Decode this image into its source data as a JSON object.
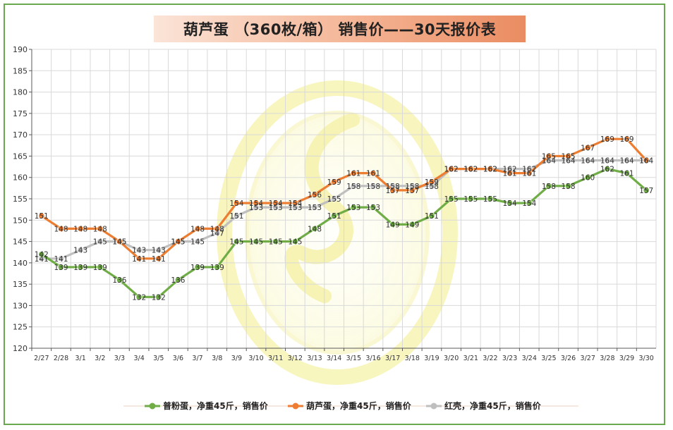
{
  "chart_data": {
    "type": "line",
    "title": "葫芦蛋 （360枚/箱） 销售价——30天报价表",
    "categories": [
      "2/27",
      "2/28",
      "3/1",
      "3/2",
      "3/3",
      "3/4",
      "3/5",
      "3/6",
      "3/7",
      "3/8",
      "3/9",
      "3/10",
      "3/11",
      "3/12",
      "3/13",
      "3/14",
      "3/15",
      "3/16",
      "3/17",
      "3/18",
      "3/19",
      "3/20",
      "3/21",
      "3/22",
      "3/23",
      "3/24",
      "3/25",
      "3/26",
      "3/27",
      "3/28",
      "3/29",
      "3/30"
    ],
    "ylim": [
      120,
      190
    ],
    "yticks": [
      120,
      125,
      130,
      135,
      140,
      145,
      150,
      155,
      160,
      165,
      170,
      175,
      180,
      185,
      190
    ],
    "grid": true,
    "legend_position": "bottom",
    "series": [
      {
        "name": "普粉蛋，净重45斤，销售价",
        "color": "#70ad47",
        "values": [
          142,
          139,
          139,
          139,
          136,
          132,
          132,
          136,
          139,
          139,
          145,
          145,
          145,
          145,
          148,
          151,
          153,
          153,
          149,
          149,
          151,
          155,
          155,
          155,
          154,
          154,
          158,
          158,
          160,
          162,
          161,
          157
        ]
      },
      {
        "name": "葫芦蛋，净重45斤，销售价",
        "color": "#ed7d31",
        "values": [
          151,
          148,
          148,
          148,
          145,
          141,
          141,
          145,
          148,
          148,
          154,
          154,
          154,
          154,
          156,
          159,
          161,
          161,
          157,
          157,
          159,
          162,
          162,
          162,
          161,
          161,
          165,
          165,
          167,
          169,
          169,
          164
        ]
      },
      {
        "name": "红壳，净重45斤，销售价",
        "color": "#bfbfbf",
        "values": [
          141,
          141,
          143,
          145,
          145,
          143,
          143,
          145,
          145,
          147,
          151,
          153,
          153,
          153,
          153,
          155,
          158,
          158,
          158,
          158,
          158,
          162,
          162,
          162,
          162,
          162,
          164,
          164,
          164,
          164,
          164,
          164
        ]
      }
    ]
  }
}
